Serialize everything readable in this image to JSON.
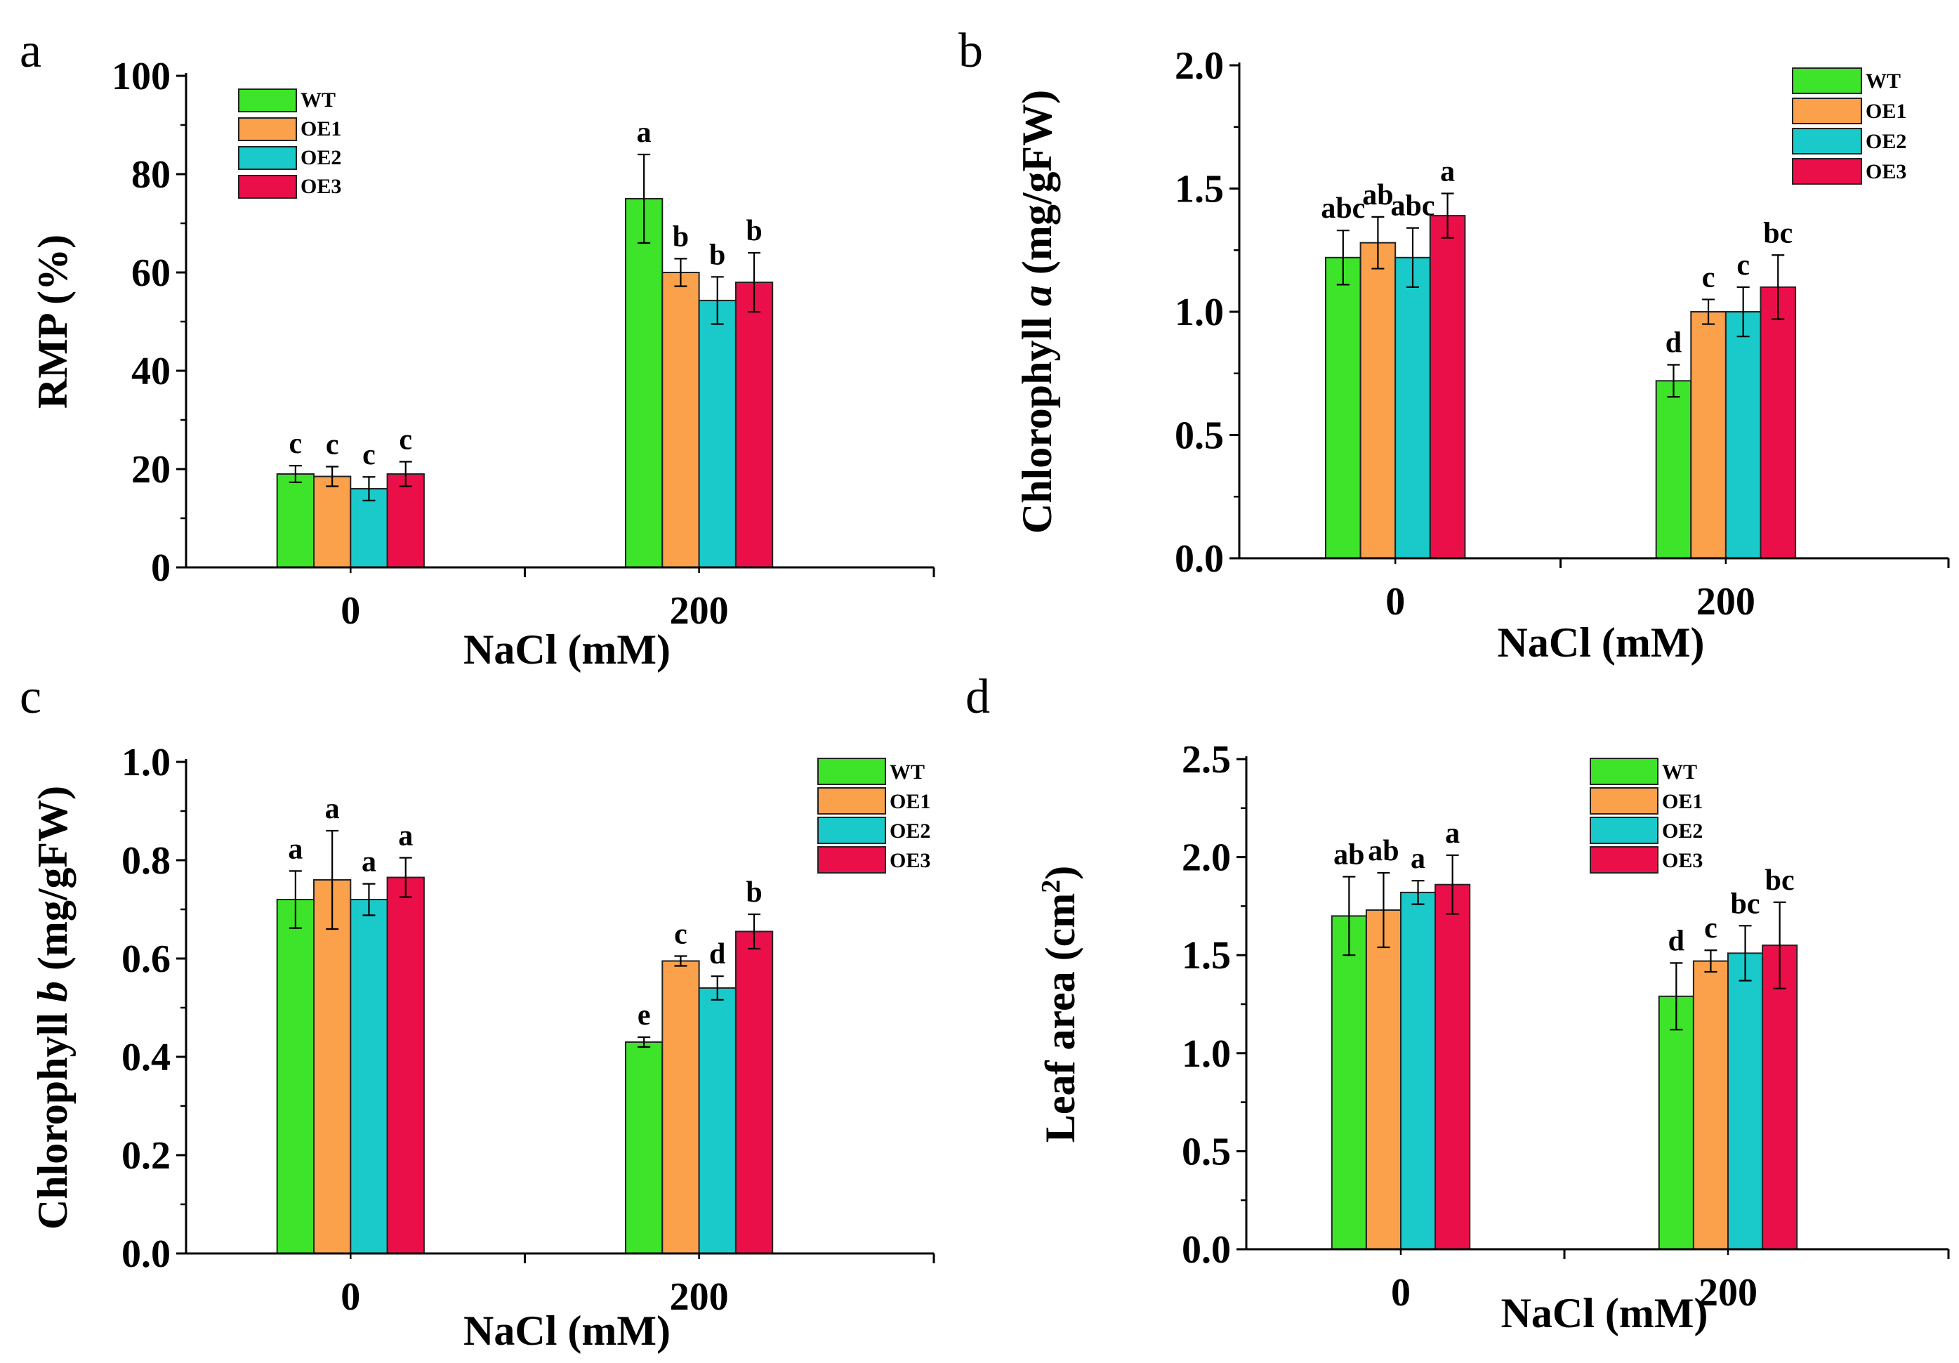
{
  "figure": {
    "colors": {
      "WT": "#3de42a",
      "OE1": "#fba14c",
      "OE2": "#1acaca",
      "OE3": "#eb0f49"
    }
  },
  "chart_data": [
    {
      "type": "bar",
      "panel": "a",
      "title": "",
      "xlabel": "NaCl (mM)",
      "ylabel": "RMP (%)",
      "categories": [
        "0",
        "200"
      ],
      "ylim": [
        0,
        100
      ],
      "yticks": [
        0,
        20,
        40,
        60,
        80,
        100
      ],
      "ytick_labels": [
        "0",
        "20",
        "40",
        "60",
        "80",
        "100"
      ],
      "legend_position": "top-left",
      "series": [
        {
          "name": "WT",
          "values": [
            19,
            75
          ],
          "errors": [
            1.7,
            9
          ],
          "letters": [
            "c",
            "a"
          ]
        },
        {
          "name": "OE1",
          "values": [
            18.5,
            60
          ],
          "errors": [
            2,
            2.8
          ],
          "letters": [
            "c",
            "b"
          ]
        },
        {
          "name": "OE2",
          "values": [
            16,
            54.3
          ],
          "errors": [
            2.4,
            4.8
          ],
          "letters": [
            "c",
            "b"
          ]
        },
        {
          "name": "OE3",
          "values": [
            19,
            58
          ],
          "errors": [
            2.5,
            6
          ],
          "letters": [
            "c",
            "b"
          ]
        }
      ]
    },
    {
      "type": "bar",
      "panel": "b",
      "title": "",
      "xlabel": "NaCl (mM)",
      "ylabel_parts": [
        "Chlorophyll ",
        "a",
        " (mg/gFW)"
      ],
      "categories": [
        "0",
        "200"
      ],
      "ylim": [
        0,
        2.0
      ],
      "yticks": [
        0,
        0.5,
        1.0,
        1.5,
        2.0
      ],
      "ytick_labels": [
        "0.0",
        "0.5",
        "1.0",
        "1.5",
        "2.0"
      ],
      "legend_position": "top-right",
      "series": [
        {
          "name": "WT",
          "values": [
            1.22,
            0.72
          ],
          "errors": [
            0.11,
            0.065
          ],
          "letters": [
            "abc",
            "d"
          ]
        },
        {
          "name": "OE1",
          "values": [
            1.28,
            1.0
          ],
          "errors": [
            0.105,
            0.05
          ],
          "letters": [
            "ab",
            "c"
          ]
        },
        {
          "name": "OE2",
          "values": [
            1.22,
            1.0
          ],
          "errors": [
            0.12,
            0.1
          ],
          "letters": [
            "abc",
            "c"
          ]
        },
        {
          "name": "OE3",
          "values": [
            1.39,
            1.1
          ],
          "errors": [
            0.09,
            0.13
          ],
          "letters": [
            "a",
            "bc"
          ]
        }
      ]
    },
    {
      "type": "bar",
      "panel": "c",
      "title": "",
      "xlabel": "NaCl (mM)",
      "ylabel_parts": [
        "Chlorophyll ",
        "b",
        " (mg/gFW)"
      ],
      "categories": [
        "0",
        "200"
      ],
      "ylim": [
        0,
        1.0
      ],
      "yticks": [
        0,
        0.2,
        0.4,
        0.6,
        0.8,
        1.0
      ],
      "ytick_labels": [
        "0.0",
        "0.2",
        "0.4",
        "0.6",
        "0.8",
        "1.0"
      ],
      "legend_position": "top-right",
      "series": [
        {
          "name": "WT",
          "values": [
            0.72,
            0.43
          ],
          "errors": [
            0.058,
            0.01
          ],
          "letters": [
            "a",
            "e"
          ]
        },
        {
          "name": "OE1",
          "values": [
            0.76,
            0.595
          ],
          "errors": [
            0.1,
            0.01
          ],
          "letters": [
            "a",
            "c"
          ]
        },
        {
          "name": "OE2",
          "values": [
            0.72,
            0.54
          ],
          "errors": [
            0.032,
            0.024
          ],
          "letters": [
            "a",
            "d"
          ]
        },
        {
          "name": "OE3",
          "values": [
            0.765,
            0.655
          ],
          "errors": [
            0.04,
            0.035
          ],
          "letters": [
            "a",
            "b"
          ]
        }
      ]
    },
    {
      "type": "bar",
      "panel": "d",
      "title": "",
      "xlabel": "NaCl (mM)",
      "ylabel_parts": [
        "Leaf",
        " area (cm",
        "2",
        ")"
      ],
      "categories": [
        "0",
        "200"
      ],
      "ylim": [
        0,
        2.5
      ],
      "yticks": [
        0,
        0.5,
        1.0,
        1.5,
        2.0,
        2.5
      ],
      "ytick_labels": [
        "0.0",
        "0.5",
        "1.0",
        "1.5",
        "2.0",
        "2.5"
      ],
      "legend_position": "top-right",
      "series": [
        {
          "name": "WT",
          "values": [
            1.7,
            1.29
          ],
          "errors": [
            0.2,
            0.17
          ],
          "letters": [
            "ab",
            "d"
          ]
        },
        {
          "name": "OE1",
          "values": [
            1.73,
            1.47
          ],
          "errors": [
            0.19,
            0.055
          ],
          "letters": [
            "ab",
            "c"
          ]
        },
        {
          "name": "OE2",
          "values": [
            1.82,
            1.51
          ],
          "errors": [
            0.06,
            0.14
          ],
          "letters": [
            "a",
            "bc"
          ]
        },
        {
          "name": "OE3",
          "values": [
            1.86,
            1.55
          ],
          "errors": [
            0.15,
            0.22
          ],
          "letters": [
            "a",
            "bc"
          ]
        }
      ]
    }
  ]
}
